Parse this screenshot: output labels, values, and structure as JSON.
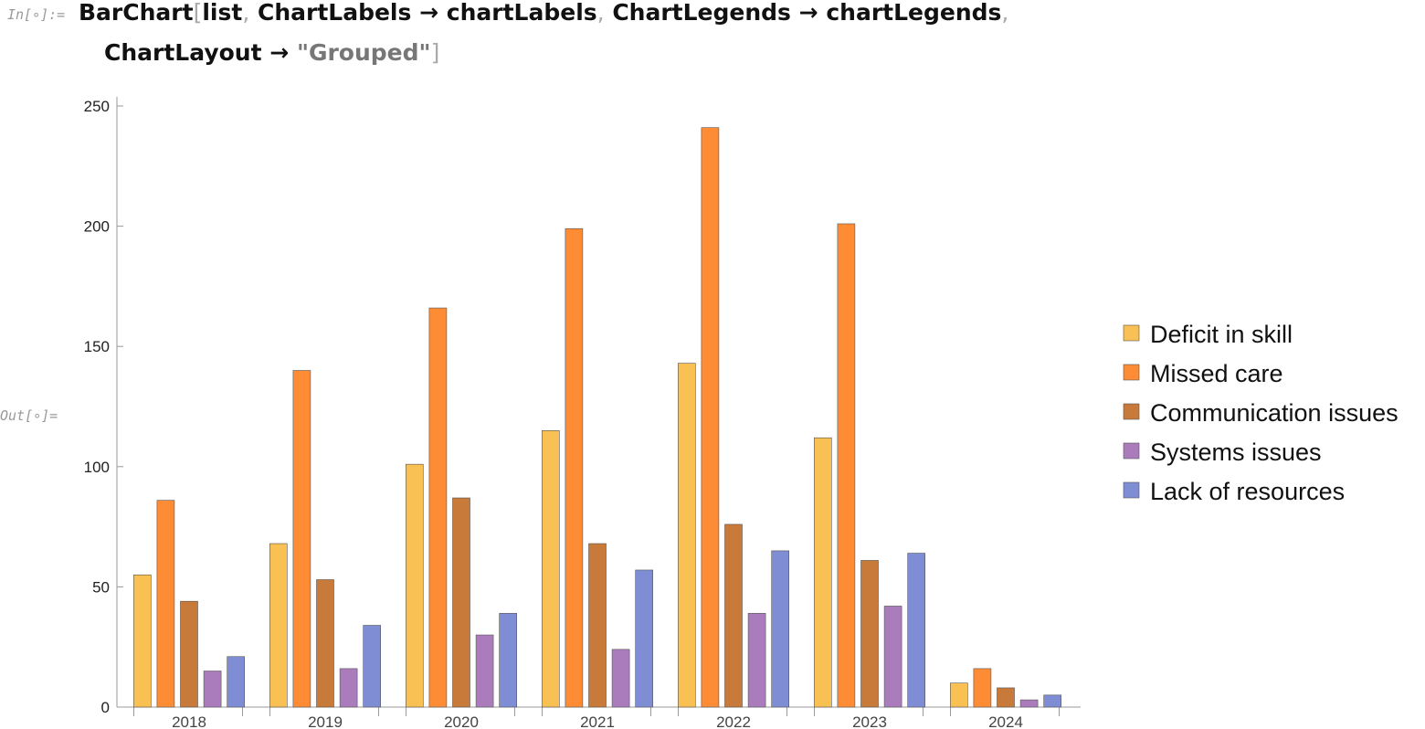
{
  "input": {
    "label": "In[∘]:=",
    "tokens": [
      "BarChart",
      "[",
      "list",
      ",",
      "ChartLabels",
      "→",
      "chartLabels",
      ",",
      "ChartLegends",
      "→",
      "chartLegends",
      ",",
      "ChartLayout",
      "→",
      "\"Grouped\"",
      "]"
    ]
  },
  "output": {
    "label": "Out[∘]="
  },
  "chart_data": {
    "type": "bar",
    "categories": [
      "2018",
      "2019",
      "2020",
      "2021",
      "2022",
      "2023",
      "2024"
    ],
    "series": [
      {
        "name": "Deficit in skill",
        "color": "#f9c153",
        "values": [
          55,
          68,
          101,
          115,
          143,
          112,
          10
        ]
      },
      {
        "name": "Missed care",
        "color": "#fd8c35",
        "values": [
          86,
          140,
          166,
          199,
          241,
          201,
          16
        ]
      },
      {
        "name": "Communication issues",
        "color": "#c77a3a",
        "values": [
          44,
          53,
          87,
          68,
          76,
          61,
          8
        ]
      },
      {
        "name": "Systems issues",
        "color": "#aa7cbc",
        "values": [
          15,
          16,
          30,
          24,
          39,
          42,
          3
        ]
      },
      {
        "name": "Lack of resources",
        "color": "#7f8dd5",
        "values": [
          21,
          34,
          39,
          57,
          65,
          64,
          5
        ]
      }
    ],
    "ylim": [
      0,
      250
    ],
    "yticks": [
      0,
      50,
      100,
      150,
      200,
      250
    ],
    "legend": "right"
  }
}
